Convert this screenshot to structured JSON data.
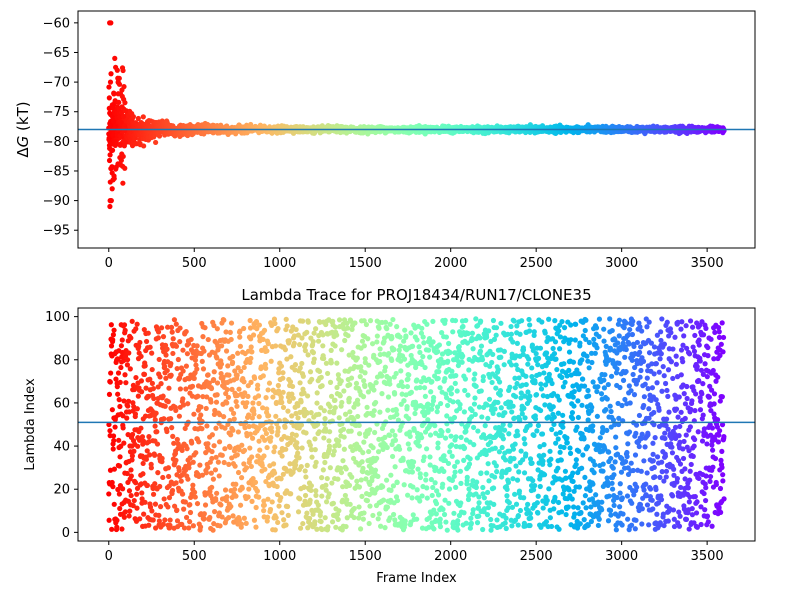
{
  "chart_data": [
    {
      "type": "scatter",
      "title": "",
      "xlabel": "",
      "ylabel": "ΔG (kT)",
      "xlim": [
        -180,
        3780
      ],
      "ylim": [
        -98,
        -58
      ],
      "xticks": [
        0,
        500,
        1000,
        1500,
        2000,
        2500,
        3000,
        3500
      ],
      "yticks": [
        -60,
        -65,
        -70,
        -75,
        -80,
        -85,
        -90,
        -95
      ],
      "reference_line": -78.0,
      "reference_line_color": "#1f77b4",
      "colormap": "rainbow",
      "n_points": 3600,
      "series_description_x": [
        0,
        3599
      ],
      "converged_value": -78.0,
      "outliers": [
        {
          "x": 5,
          "y": -60
        },
        {
          "x": 12,
          "y": -60
        },
        {
          "x": 8,
          "y": -90
        },
        {
          "x": 15,
          "y": -90
        },
        {
          "x": 20,
          "y": -88
        },
        {
          "x": 25,
          "y": -86.5
        },
        {
          "x": 35,
          "y": -66
        },
        {
          "x": 40,
          "y": -67.5
        },
        {
          "x": 50,
          "y": -68
        },
        {
          "x": 55,
          "y": -70
        },
        {
          "x": 10,
          "y": -70
        },
        {
          "x": 30,
          "y": -72
        }
      ]
    },
    {
      "type": "scatter",
      "title": "Lambda Trace for PROJ18434/RUN17/CLONE35",
      "xlabel": "Frame Index",
      "ylabel": "Lambda Index",
      "xlim": [
        -180,
        3780
      ],
      "ylim": [
        -4,
        104
      ],
      "xticks": [
        0,
        500,
        1000,
        1500,
        2000,
        2500,
        3000,
        3500
      ],
      "yticks": [
        0,
        20,
        40,
        60,
        80,
        100
      ],
      "reference_line": 51,
      "reference_line_color": "#1f77b4",
      "colormap": "rainbow",
      "n_points": 3600,
      "lambda_range": [
        1,
        99
      ]
    }
  ],
  "axes_color": "#000000"
}
